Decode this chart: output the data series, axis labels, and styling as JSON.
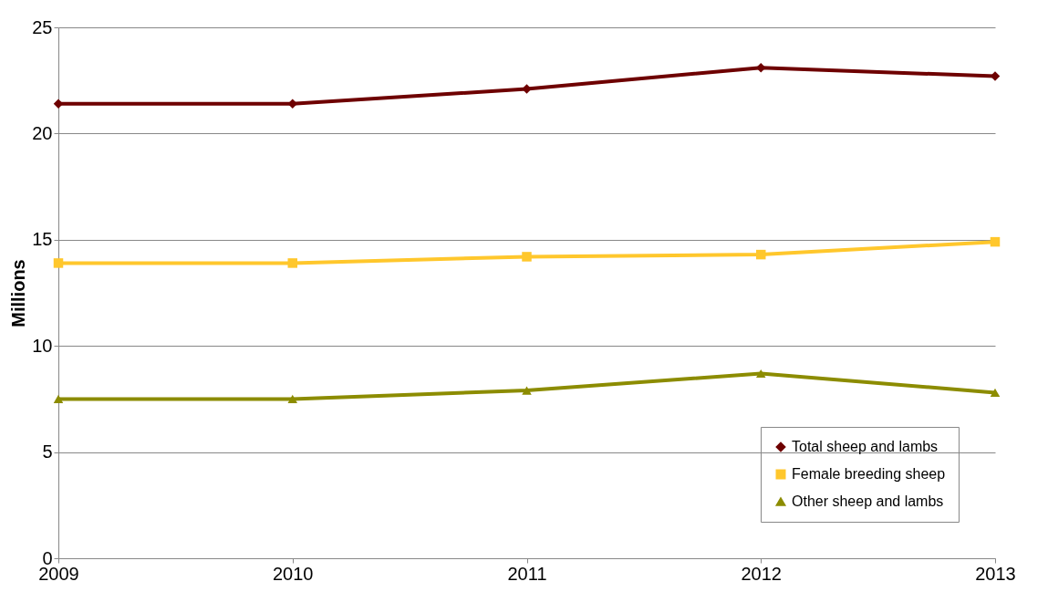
{
  "chart_data": {
    "type": "line",
    "ylabel": "Millions",
    "categories": [
      "2009",
      "2010",
      "2011",
      "2012",
      "2013"
    ],
    "series": [
      {
        "name": "Total sheep and lambs",
        "color": "#6e0000",
        "marker": "diamond",
        "values": [
          21.4,
          21.4,
          22.1,
          23.1,
          22.7
        ]
      },
      {
        "name": "Female breeding sheep",
        "color": "#ffc72c",
        "marker": "square",
        "values": [
          13.9,
          13.9,
          14.2,
          14.3,
          14.9
        ]
      },
      {
        "name": "Other sheep and lambs",
        "color": "#8c8c00",
        "marker": "triangle",
        "values": [
          7.5,
          7.5,
          7.9,
          8.7,
          7.8
        ]
      }
    ],
    "ylim": [
      0,
      25
    ],
    "yticks": [
      0,
      5,
      10,
      15,
      20,
      25
    ],
    "grid": "y",
    "legend": "bottom right",
    "line_style": "solid"
  }
}
